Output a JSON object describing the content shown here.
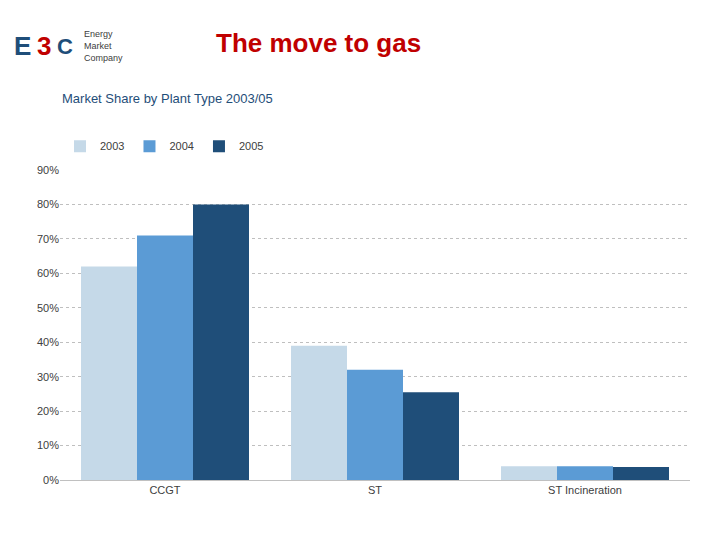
{
  "chart_data": {
    "type": "bar",
    "title": "The move to gas",
    "title_color": "#c00000",
    "subtitle": "Market Share by Plant Type 2003/05",
    "subtitle_color": "#1f4e79",
    "annotations": [
      {
        "text": "E",
        "color": "#1f4e79"
      },
      {
        "text": "3",
        "color": "#c00000"
      },
      {
        "text": "C",
        "color": "#1f4e79"
      },
      {
        "text": "Energy"
      },
      {
        "text": "Market"
      },
      {
        "text": "Company"
      }
    ],
    "categories": [
      "CCGT",
      "ST",
      "ST Incineration"
    ],
    "series": [
      {
        "name": "2003",
        "color": "#c5d9e8",
        "values": [
          0.62,
          0.39,
          0.04
        ]
      },
      {
        "name": "2004",
        "color": "#5b9bd5",
        "values": [
          0.71,
          0.32,
          0.04
        ]
      },
      {
        "name": "2005",
        "color": "#1f4e79",
        "values": [
          0.8,
          0.255,
          0.038
        ]
      }
    ],
    "ylim": [
      0,
      0.9
    ],
    "yticks": [
      {
        "value": 0.0,
        "label": "0%"
      },
      {
        "value": 0.1,
        "label": "10%"
      },
      {
        "value": 0.2,
        "label": "20%"
      },
      {
        "value": 0.3,
        "label": "30%"
      },
      {
        "value": 0.4,
        "label": "40%"
      },
      {
        "value": 0.5,
        "label": "50%"
      },
      {
        "value": 0.6,
        "label": "60%"
      },
      {
        "value": 0.7,
        "label": "70%"
      },
      {
        "value": 0.8,
        "label": "80%"
      },
      {
        "value": 0.9,
        "label": "90%"
      }
    ],
    "grid": true,
    "legend": "top left"
  }
}
